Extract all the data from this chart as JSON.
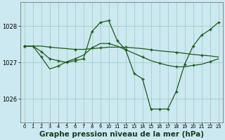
{
  "background_color": "#cce8f0",
  "grid_color": "#99ccbb",
  "line_color": "#1a5c1a",
  "xlabel": "Graphe pression niveau de la mer (hPa)",
  "xlabel_fontsize": 7.5,
  "x_ticks": [
    0,
    1,
    2,
    3,
    4,
    5,
    6,
    7,
    8,
    9,
    10,
    11,
    12,
    13,
    14,
    15,
    16,
    17,
    18,
    19,
    20,
    21,
    22,
    23
  ],
  "ylim": [
    1025.35,
    1028.65
  ],
  "yticks": [
    1026,
    1027,
    1028
  ],
  "lines": [
    {
      "x": [
        0,
        1,
        2,
        3,
        4,
        5,
        6,
        7,
        8,
        9,
        10,
        11,
        12,
        13,
        14,
        15,
        16,
        17,
        18,
        19,
        20,
        21,
        22,
        23
      ],
      "y": [
        1027.45,
        1027.45,
        1027.3,
        1027.1,
        1027.05,
        1027.0,
        1027.05,
        1027.1,
        1027.85,
        1028.1,
        1028.15,
        1027.6,
        1027.35,
        1026.7,
        1026.55,
        1025.72,
        1025.72,
        1025.72,
        1026.2,
        1026.95,
        1027.45,
        1027.75,
        1027.9,
        1028.1
      ],
      "mk_every": 1
    },
    {
      "x": [
        0,
        1,
        2,
        3,
        4,
        5,
        6,
        7,
        8,
        9,
        10,
        11,
        12,
        13,
        14,
        15,
        16,
        17,
        18,
        19,
        20,
        21,
        22,
        23
      ],
      "y": [
        1027.45,
        1027.45,
        1027.45,
        1027.42,
        1027.4,
        1027.38,
        1027.36,
        1027.36,
        1027.38,
        1027.4,
        1027.42,
        1027.42,
        1027.42,
        1027.4,
        1027.38,
        1027.35,
        1027.32,
        1027.3,
        1027.28,
        1027.25,
        1027.22,
        1027.2,
        1027.18,
        1027.15
      ],
      "mk_every": 3
    },
    {
      "x": [
        0,
        1,
        2,
        3,
        4,
        5,
        6,
        7,
        8,
        9,
        10,
        11,
        12,
        13,
        14,
        15,
        16,
        17,
        18,
        19,
        20,
        21,
        22,
        23
      ],
      "y": [
        1027.45,
        1027.45,
        1027.15,
        1026.82,
        1026.9,
        1027.02,
        1027.1,
        1027.2,
        1027.4,
        1027.52,
        1027.52,
        1027.45,
        1027.35,
        1027.25,
        1027.15,
        1027.05,
        1026.98,
        1026.92,
        1026.88,
        1026.88,
        1026.92,
        1026.95,
        1027.02,
        1027.1
      ],
      "mk_every": 2
    },
    {
      "x": [
        19,
        20,
        21,
        22,
        23
      ],
      "y": [
        1026.95,
        1027.45,
        1027.75,
        1027.9,
        1028.1
      ],
      "mk_every": 1
    }
  ]
}
